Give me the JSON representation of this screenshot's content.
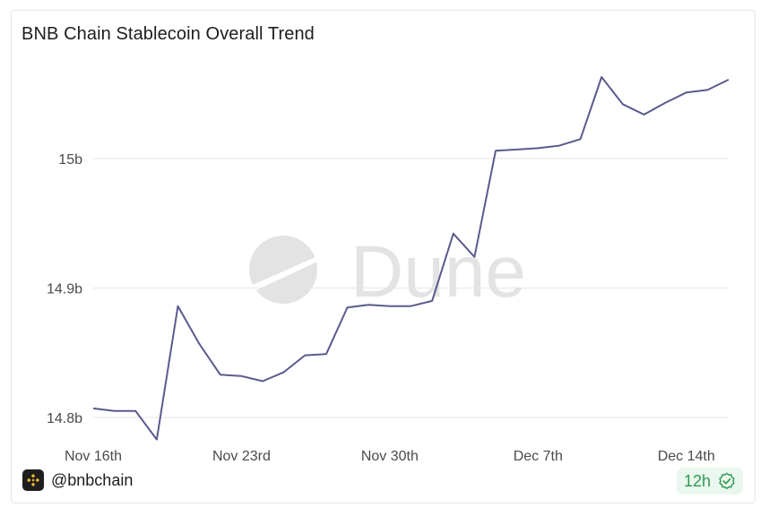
{
  "title": "BNB Chain Stablecoin Overall Trend",
  "watermark": "Dune",
  "footer": {
    "handle": "@bnbchain",
    "refresh_badge": "12h"
  },
  "colors": {
    "line": "#5a5a8e",
    "grid": "#e6e6e6",
    "badge_bg": "#eaf7ee",
    "badge_text": "#2f9a52",
    "logo_bg": "#1e1e1e",
    "logo_fg": "#f3ba2f"
  },
  "icons": {
    "logo": "bnb-chain-logo-icon",
    "badge": "check-badge-icon"
  },
  "chart_data": {
    "type": "line",
    "title": "BNB Chain Stablecoin Overall Trend",
    "xlabel": "",
    "ylabel": "",
    "grid": true,
    "legend": "none",
    "ylim": [
      14.77,
      15.07
    ],
    "y_ticks": [
      {
        "value": 14.8,
        "label": "14.8b"
      },
      {
        "value": 14.9,
        "label": "14.9b"
      },
      {
        "value": 15.0,
        "label": "15b"
      }
    ],
    "x_ticks": [
      {
        "date": "2024-11-16",
        "label": "Nov 16th"
      },
      {
        "date": "2024-11-23",
        "label": "Nov 23rd"
      },
      {
        "date": "2024-11-30",
        "label": "Nov 30th"
      },
      {
        "date": "2024-12-07",
        "label": "Dec 7th"
      },
      {
        "date": "2024-12-14",
        "label": "Dec 14th"
      }
    ],
    "x_range": [
      "2024-11-16",
      "2024-12-16"
    ],
    "series": [
      {
        "x": [
          "2024-11-16",
          "2024-11-17",
          "2024-11-18",
          "2024-11-19",
          "2024-11-20",
          "2024-11-21",
          "2024-11-22",
          "2024-11-23",
          "2024-11-24",
          "2024-11-25",
          "2024-11-26",
          "2024-11-27",
          "2024-11-28",
          "2024-11-29",
          "2024-11-30",
          "2024-12-01",
          "2024-12-02",
          "2024-12-03",
          "2024-12-04",
          "2024-12-05",
          "2024-12-06",
          "2024-12-07",
          "2024-12-08",
          "2024-12-09",
          "2024-12-10",
          "2024-12-11",
          "2024-12-12",
          "2024-12-13",
          "2024-12-14",
          "2024-12-15",
          "2024-12-16"
        ],
        "values": [
          14.807,
          14.805,
          14.805,
          14.783,
          14.886,
          14.857,
          14.833,
          14.832,
          14.828,
          14.835,
          14.848,
          14.849,
          14.885,
          14.887,
          14.886,
          14.886,
          14.89,
          14.942,
          14.924,
          15.006,
          15.007,
          15.008,
          15.01,
          15.015,
          15.063,
          15.042,
          15.034,
          15.043,
          15.051,
          15.053,
          15.061
        ]
      }
    ]
  }
}
